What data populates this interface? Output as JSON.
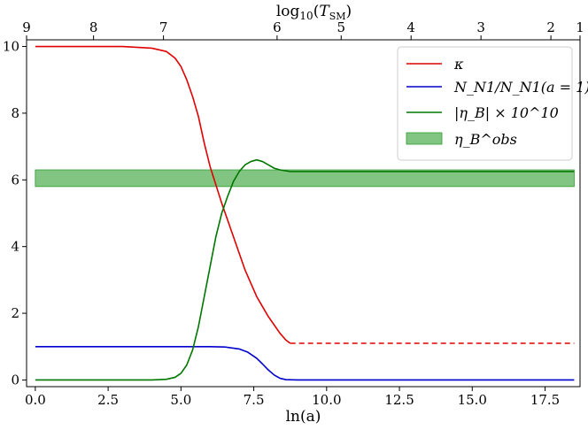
{
  "chart_data": {
    "type": "line",
    "xlabel": "ln(a)",
    "ylabel": "",
    "top_xlabel": "log10(T_SM)",
    "top_xlabel_parts": {
      "main": "log",
      "sub": "10",
      "open": "(",
      "var": "T",
      "var_sub": "SM",
      "close": ")"
    },
    "xlim": [
      -0.3,
      18.7
    ],
    "ylim": [
      -0.2,
      10.2
    ],
    "x_ticks": [
      0.0,
      2.5,
      5.0,
      7.5,
      10.0,
      12.5,
      15.0,
      17.5
    ],
    "x_tick_labels": [
      "0.0",
      "2.5",
      "5.0",
      "7.5",
      "10.0",
      "12.5",
      "15.0",
      "17.5"
    ],
    "y_ticks": [
      0,
      2,
      4,
      6,
      8,
      10
    ],
    "y_tick_labels": [
      "0",
      "2",
      "4",
      "6",
      "8",
      "10"
    ],
    "top_ticks": [
      {
        "label": "9",
        "x": -0.3
      },
      {
        "label": "8",
        "x": 2.0
      },
      {
        "label": "7",
        "x": 4.4
      },
      {
        "label": "6",
        "x": 8.3
      },
      {
        "label": "5",
        "x": 10.5
      },
      {
        "label": "4",
        "x": 12.9
      },
      {
        "label": "3",
        "x": 15.3
      },
      {
        "label": "2",
        "x": 17.7
      },
      {
        "label": "1",
        "x": 18.7
      }
    ],
    "series": [
      {
        "name": "kappa",
        "color": "#e00000",
        "x": [
          0,
          1,
          2,
          3,
          4,
          4.5,
          4.8,
          5.0,
          5.2,
          5.4,
          5.6,
          5.8,
          6.0,
          6.2,
          6.4,
          6.6,
          6.8,
          7.0,
          7.2,
          7.4,
          7.6,
          7.8,
          8.0,
          8.2,
          8.4,
          8.6,
          8.75
        ],
        "y": [
          10.0,
          10.0,
          10.0,
          10.0,
          9.95,
          9.85,
          9.65,
          9.4,
          9.0,
          8.5,
          7.9,
          7.1,
          6.4,
          5.85,
          5.3,
          4.8,
          4.3,
          3.8,
          3.3,
          2.9,
          2.5,
          2.2,
          1.9,
          1.65,
          1.4,
          1.2,
          1.1
        ]
      },
      {
        "name": "kappa-extrapolation",
        "color": "#e00000",
        "dashed": true,
        "x": [
          8.75,
          18.5
        ],
        "y": [
          1.1,
          1.1
        ]
      },
      {
        "name": "N_N1 / N_N1(a=1)",
        "color": "#0000cc",
        "x": [
          0,
          2,
          4,
          6,
          6.5,
          7.0,
          7.3,
          7.6,
          7.8,
          8.0,
          8.2,
          8.4,
          8.6,
          9.0,
          10,
          12,
          14,
          16,
          18.5
        ],
        "y": [
          1.0,
          1.0,
          1.0,
          1.0,
          0.99,
          0.93,
          0.83,
          0.65,
          0.48,
          0.3,
          0.15,
          0.05,
          0.01,
          0.0,
          0.0,
          0.0,
          0.0,
          0.0,
          0.0
        ]
      },
      {
        "name": "|eta_B| x 10^10",
        "color": "#007700",
        "x": [
          0,
          2,
          4,
          4.5,
          4.8,
          5.0,
          5.2,
          5.4,
          5.6,
          5.8,
          6.0,
          6.2,
          6.4,
          6.6,
          6.8,
          7.0,
          7.2,
          7.4,
          7.6,
          7.8,
          8.0,
          8.2,
          8.4,
          8.6,
          8.75,
          9.5,
          12,
          15,
          18.5
        ],
        "y": [
          0.0,
          0.0,
          0.0,
          0.02,
          0.08,
          0.2,
          0.45,
          0.9,
          1.6,
          2.5,
          3.4,
          4.3,
          5.0,
          5.5,
          5.95,
          6.25,
          6.45,
          6.55,
          6.6,
          6.55,
          6.45,
          6.35,
          6.3,
          6.27,
          6.25,
          6.25,
          6.25,
          6.25,
          6.25
        ]
      }
    ],
    "band": {
      "name": "eta_B^obs",
      "x0": 0.0,
      "x1": 18.5,
      "y0": 5.8,
      "y1": 6.3,
      "color": "#2e9e2e",
      "opacity": 0.6
    },
    "legend": {
      "placement": "top-right",
      "entries": [
        {
          "label": "κ",
          "color": "#e00000",
          "kind": "line"
        },
        {
          "label": "N_N1/N_N1(a = 1)",
          "color": "#0000cc",
          "kind": "line"
        },
        {
          "label": "|η_B| × 10^10",
          "color": "#007700",
          "kind": "line"
        },
        {
          "label": "η_B^obs",
          "color": "#2e9e2e",
          "kind": "patch"
        }
      ]
    }
  }
}
